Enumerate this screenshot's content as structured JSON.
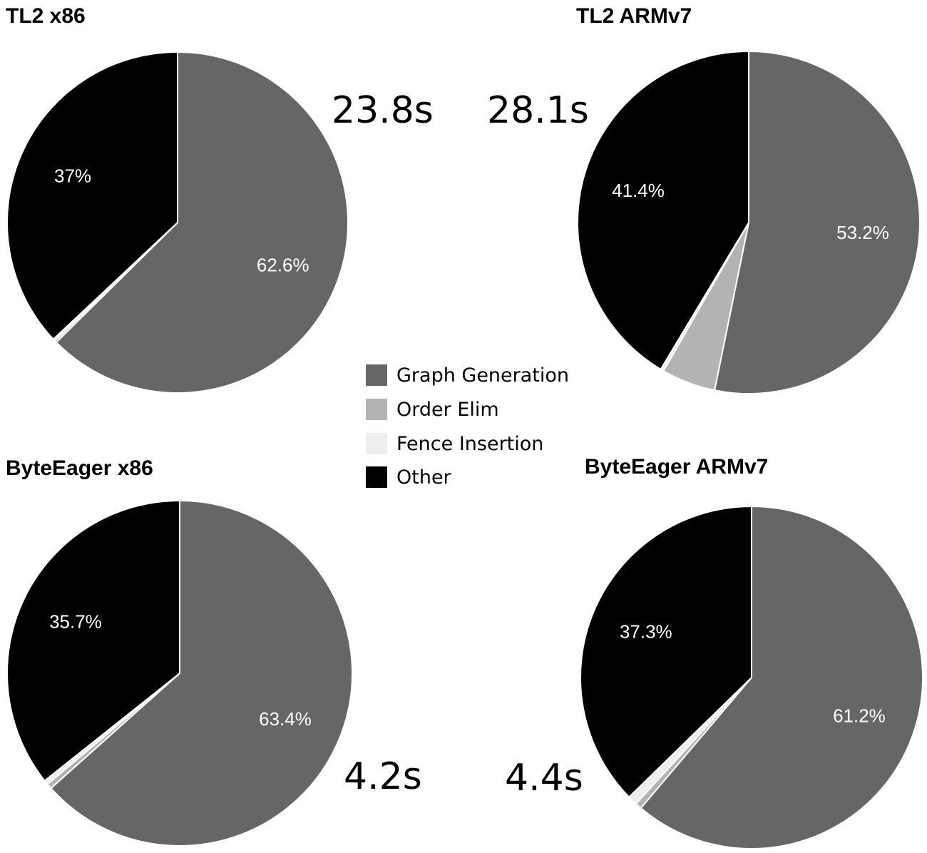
{
  "chart_data": {
    "type": "pie",
    "legend": {
      "placement": "center",
      "entries": [
        {
          "name": "Graph Generation",
          "color": "#666666"
        },
        {
          "name": "Order Elim",
          "color": "#b3b3b3"
        },
        {
          "name": "Fence Insertion",
          "color": "#eeeeee"
        },
        {
          "name": "Other",
          "color": "#000000"
        }
      ]
    },
    "charts": [
      {
        "title": "TL2 x86",
        "total_time": "23.8s",
        "slices": [
          {
            "name": "Graph Generation",
            "value": 62.6,
            "label": "62.6%"
          },
          {
            "name": "Order Elim",
            "value": 0.2,
            "label": ""
          },
          {
            "name": "Fence Insertion",
            "value": 0.2,
            "label": ""
          },
          {
            "name": "Other",
            "value": 37.0,
            "label": "37%"
          }
        ]
      },
      {
        "title": "TL2 ARMv7",
        "total_time": "28.1s",
        "slices": [
          {
            "name": "Graph Generation",
            "value": 53.2,
            "label": "53.2%"
          },
          {
            "name": "Order Elim",
            "value": 5.1,
            "label": ""
          },
          {
            "name": "Fence Insertion",
            "value": 0.3,
            "label": ""
          },
          {
            "name": "Other",
            "value": 41.4,
            "label": "41.4%"
          }
        ]
      },
      {
        "title": "ByteEager x86",
        "total_time": "4.2s",
        "slices": [
          {
            "name": "Graph Generation",
            "value": 63.4,
            "label": "63.4%"
          },
          {
            "name": "Order Elim",
            "value": 0.5,
            "label": ""
          },
          {
            "name": "Fence Insertion",
            "value": 0.4,
            "label": ""
          },
          {
            "name": "Other",
            "value": 35.7,
            "label": "35.7%"
          }
        ]
      },
      {
        "title": "ByteEager ARMv7",
        "total_time": "4.4s",
        "slices": [
          {
            "name": "Graph Generation",
            "value": 61.2,
            "label": "61.2%"
          },
          {
            "name": "Order Elim",
            "value": 0.6,
            "label": ""
          },
          {
            "name": "Fence Insertion",
            "value": 0.9,
            "label": ""
          },
          {
            "name": "Other",
            "value": 37.3,
            "label": "37.3%"
          }
        ]
      }
    ]
  }
}
